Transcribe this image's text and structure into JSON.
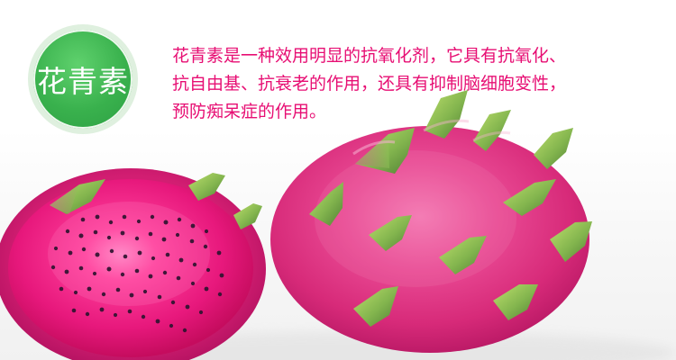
{
  "badge": {
    "label": "花青素"
  },
  "description": {
    "lines": [
      "花青素是一种效用明显的抗氧化剂，它具有抗氧化、",
      "抗自由基、抗衰老的作用，还具有抑制脑细胞变性，",
      "预防痴呆症的作用。"
    ]
  },
  "colors": {
    "badge_green": "#39b14d",
    "text_pink": "#e70e73",
    "fruit_pink": "#e93f8c",
    "seed": "#2f1430"
  }
}
